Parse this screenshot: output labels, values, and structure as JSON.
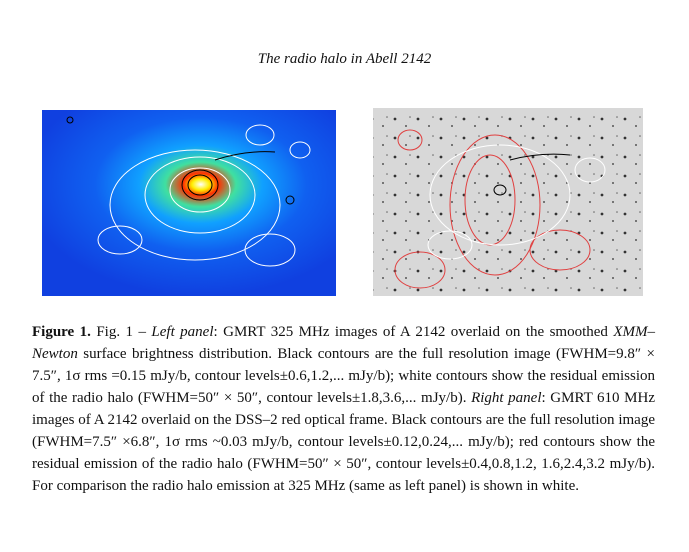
{
  "header": {
    "title": "The radio halo in Abell 2142"
  },
  "caption": {
    "parts": [
      "Figure 1.",
      " Fig. 1 – ",
      "Left panel",
      ": GMRT 325 MHz images of A 2142 overlaid on the smoothed ",
      "XMM–Newton",
      " surface brightness distribution. Black contours are the full resolution image (FWHM=9.8″ × 7.5″, 1σ rms =0.15 mJy/b, contour levels±0.6,1.2,... mJy/b); white contours show the residual emission of the radio halo (FWHM=50″ × 50″, contour levels±1.8,3.6,... mJy/b). ",
      "Right panel",
      ": GMRT 610 MHz images of A 2142 overlaid on the DSS–2 red optical frame. Black contours are the full resolution image (FWHM=7.5″ ×6.8″, 1σ rms ~0.03 mJy/b, contour levels±0.12,0.24,... mJy/b); red contours show the residual emission of the radio halo (FWHM=50″ × 50″, contour levels±0.4,0.8,1.2, 1.6,2.4,3.2 mJy/b). For comparison the radio halo emission at 325 MHz (same as left panel) is shown in white."
    ]
  }
}
